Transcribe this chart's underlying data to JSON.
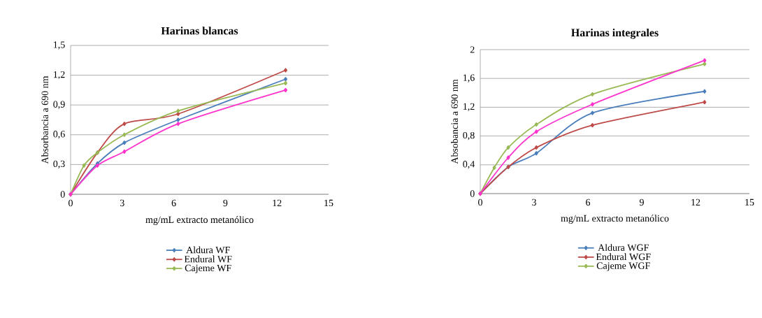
{
  "chart_data": [
    {
      "type": "line",
      "title": "Harinas blancas",
      "xlabel": "mg/mL  extracto metanólico",
      "ylabel": "Absorbancia a 690 nm",
      "xlim": [
        0,
        15
      ],
      "xticks": [
        0,
        3,
        6,
        9,
        12,
        15
      ],
      "ylim": [
        0,
        1.5
      ],
      "yticks": [
        0,
        {
          "value": 0.3,
          "label": "0,3"
        },
        {
          "value": 0.6,
          "label": "0,6"
        },
        {
          "value": 0.9,
          "label": "0,9"
        },
        {
          "value": 1.2,
          "label": "1,2"
        },
        {
          "value": 1.5,
          "label": "1,5"
        }
      ],
      "grid": "y",
      "legend": "bottom",
      "marker": "diamond",
      "line_style": "solid",
      "series": [
        {
          "name": "Aldura WF",
          "color": "#4a7ebb",
          "x": [
            0,
            1.56,
            3.125,
            6.25,
            12.5
          ],
          "values": [
            0,
            0.31,
            0.52,
            0.75,
            1.16
          ]
        },
        {
          "name": "Endural WF",
          "color": "#be4b48",
          "x": [
            0,
            1.56,
            3.125,
            6.25,
            12.5
          ],
          "values": [
            0,
            0.42,
            0.71,
            0.81,
            1.25
          ]
        },
        {
          "name": "Cajeme WF",
          "color": "#98b954",
          "x": [
            0,
            0.78,
            1.56,
            3.125,
            6.25,
            12.5
          ],
          "values": [
            0,
            0.29,
            0.42,
            0.6,
            0.84,
            1.12
          ]
        },
        {
          "color": "#ff33cc",
          "x": [
            0,
            1.56,
            3.125,
            6.25,
            12.5
          ],
          "values": [
            0,
            0.29,
            0.43,
            0.71,
            1.05
          ]
        }
      ]
    },
    {
      "type": "line",
      "title": "Harinas integrales",
      "xlabel": "mg/mL  extracto metanólico",
      "ylabel": "Absobancia a 690 nm",
      "xlim": [
        0,
        15
      ],
      "xticks": [
        0,
        3,
        6,
        9,
        12,
        15
      ],
      "ylim": [
        0,
        2
      ],
      "yticks": [
        0,
        {
          "value": 0.4,
          "label": "0,4"
        },
        {
          "value": 0.8,
          "label": "0,8"
        },
        {
          "value": 1.2,
          "label": "1,2"
        },
        {
          "value": 1.6,
          "label": "1,6"
        },
        2
      ],
      "grid": "y",
      "legend": "bottom",
      "marker": "diamond",
      "line_style": "solid",
      "series": [
        {
          "name": "Aldura WGF",
          "color": "#4a7ebb",
          "x": [
            0,
            1.56,
            3.125,
            6.25,
            12.5
          ],
          "values": [
            0,
            0.37,
            0.56,
            1.12,
            1.42
          ]
        },
        {
          "name": "Endural WGF",
          "color": "#be4b48",
          "x": [
            0,
            1.56,
            3.125,
            6.25,
            12.5
          ],
          "values": [
            0,
            0.37,
            0.64,
            0.95,
            1.27
          ]
        },
        {
          "name": "Cajeme WGF",
          "color": "#98b954",
          "x": [
            0,
            0.78,
            1.56,
            3.125,
            6.25,
            12.5
          ],
          "values": [
            0,
            0.36,
            0.64,
            0.96,
            1.38,
            1.8
          ]
        },
        {
          "color": "#ff33cc",
          "x": [
            0,
            1.56,
            3.125,
            6.25,
            12.5
          ],
          "values": [
            0,
            0.5,
            0.86,
            1.24,
            1.85
          ]
        }
      ]
    }
  ]
}
